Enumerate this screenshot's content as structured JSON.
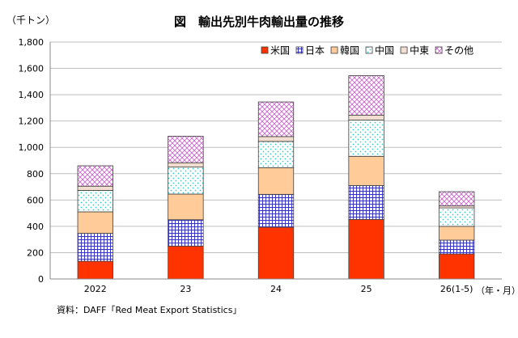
{
  "chart_data": {
    "type": "bar",
    "stacked": true,
    "title": "図　輸出先別牛肉輸出量の推移",
    "ylabel": "（千トン）",
    "xlabel": "（年・月）",
    "source": "資料：DAFF「Red Meat Export Statistics」",
    "categories": [
      "2022",
      "23",
      "24",
      "25",
      "26(1-5)"
    ],
    "ylim": [
      0,
      1800
    ],
    "yticks": [
      0,
      200,
      400,
      600,
      800,
      1000,
      1200,
      1400,
      1600,
      1800
    ],
    "ytick_labels": [
      "0",
      "200",
      "400",
      "600",
      "800",
      "1,000",
      "1,200",
      "1,400",
      "1,600",
      "1,800"
    ],
    "grid": true,
    "legend_position": "top-right",
    "series": [
      {
        "name": "米国",
        "color": "#ff3300",
        "pattern": "solid",
        "values": [
          135,
          250,
          393,
          452,
          190
        ]
      },
      {
        "name": "日本",
        "color": "#3333cc",
        "pattern": "grid",
        "values": [
          212,
          200,
          250,
          258,
          105
        ]
      },
      {
        "name": "韓国",
        "color": "#ffcc99",
        "pattern": "solid",
        "values": [
          163,
          195,
          202,
          222,
          105
        ]
      },
      {
        "name": "中国",
        "color": "#33cccc",
        "pattern": "dots",
        "values": [
          163,
          205,
          200,
          275,
          140
        ]
      },
      {
        "name": "中東",
        "color": "#f2ded0",
        "pattern": "solid",
        "values": [
          32,
          33,
          37,
          38,
          15
        ]
      },
      {
        "name": "その他",
        "color": "#cc66cc",
        "pattern": "diagonal",
        "values": [
          155,
          202,
          263,
          300,
          108
        ]
      }
    ]
  }
}
